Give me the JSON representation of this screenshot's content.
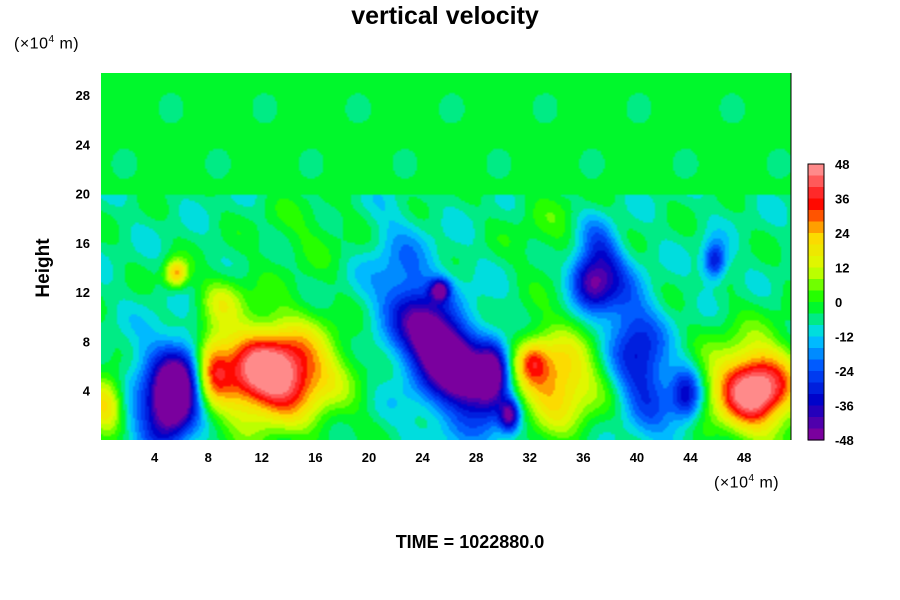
{
  "chart_data": {
    "type": "heatmap",
    "title": "vertical velocity",
    "ylabel": "Height",
    "x_unit": {
      "prefix": "(×10",
      "exp": "4",
      "suffix": " m)"
    },
    "y_unit": {
      "prefix": "(×10",
      "exp": "4",
      "suffix": " m)"
    },
    "x_ticks": [
      4,
      8,
      12,
      16,
      20,
      24,
      28,
      32,
      36,
      40,
      44,
      48
    ],
    "y_ticks": [
      4,
      8,
      12,
      16,
      20,
      24,
      28
    ],
    "xlim": [
      0,
      51.5
    ],
    "ylim": [
      0,
      29.8
    ],
    "colorbar": {
      "ticks": [
        48,
        36,
        24,
        12,
        0,
        -12,
        -24,
        -36,
        -48
      ],
      "range": [
        -48,
        48
      ]
    },
    "features": [
      {
        "x": 5.5,
        "y": 3.5,
        "sx": 1.2,
        "sy": 2.3,
        "v": -50,
        "rot": 0.2
      },
      {
        "x": 5.0,
        "y": 4.5,
        "sx": 2.2,
        "sy": 3.4,
        "v": -22,
        "rot": 0.2
      },
      {
        "x": 12.8,
        "y": 5.4,
        "sx": 2.7,
        "sy": 2.3,
        "v": 44,
        "rot": 0
      },
      {
        "x": 12.5,
        "y": 5.6,
        "sx": 4.4,
        "sy": 3.7,
        "v": 18,
        "rot": 0
      },
      {
        "x": 8.3,
        "y": 6.0,
        "sx": 0.9,
        "sy": 2.0,
        "v": 26,
        "rot": 0
      },
      {
        "x": 5.6,
        "y": 13.5,
        "sx": 0.6,
        "sy": 0.8,
        "v": 32,
        "rot": 0
      },
      {
        "x": 0.4,
        "y": 3.0,
        "sx": 1.0,
        "sy": 1.6,
        "v": 30,
        "rot": 0
      },
      {
        "x": 25.8,
        "y": 6.8,
        "sx": 1.2,
        "sy": 3.4,
        "v": -52,
        "rot": -0.6
      },
      {
        "x": 25.5,
        "y": 6.5,
        "sx": 2.8,
        "sy": 5.0,
        "v": -20,
        "rot": -0.5
      },
      {
        "x": 29.3,
        "y": 5.5,
        "sx": 0.8,
        "sy": 1.6,
        "v": -40,
        "rot": 0
      },
      {
        "x": 30.5,
        "y": 2.0,
        "sx": 0.5,
        "sy": 0.9,
        "v": -34,
        "rot": 0
      },
      {
        "x": 25.3,
        "y": 12.2,
        "sx": 0.5,
        "sy": 0.6,
        "v": -34,
        "rot": 0
      },
      {
        "x": 22.5,
        "y": 15.0,
        "sx": 1.5,
        "sy": 3.0,
        "v": -8,
        "rot": -0.4
      },
      {
        "x": 33.8,
        "y": 4.8,
        "sx": 2.3,
        "sy": 2.8,
        "v": 34,
        "rot": 0
      },
      {
        "x": 32.2,
        "y": 6.5,
        "sx": 0.8,
        "sy": 1.2,
        "v": 18,
        "rot": 0
      },
      {
        "x": 36.5,
        "y": 12.8,
        "sx": 1.0,
        "sy": 1.6,
        "v": -36,
        "rot": -0.3
      },
      {
        "x": 37.5,
        "y": 15.0,
        "sx": 1.0,
        "sy": 2.2,
        "v": -22,
        "rot": -0.3
      },
      {
        "x": 40.2,
        "y": 6.5,
        "sx": 1.5,
        "sy": 4.0,
        "v": -28,
        "rot": -0.2
      },
      {
        "x": 43.7,
        "y": 3.6,
        "sx": 0.8,
        "sy": 1.6,
        "v": -28,
        "rot": 0
      },
      {
        "x": 45.8,
        "y": 14.5,
        "sx": 0.6,
        "sy": 1.1,
        "v": -28,
        "rot": 0
      },
      {
        "x": 48.8,
        "y": 4.0,
        "sx": 1.9,
        "sy": 2.1,
        "v": 44,
        "rot": 0
      },
      {
        "x": 48.8,
        "y": 4.5,
        "sx": 3.0,
        "sy": 3.3,
        "v": 16,
        "rot": 0
      },
      {
        "x": 34.0,
        "y": 17.0,
        "sx": 2.5,
        "sy": 3.0,
        "v": 6,
        "rot": 0
      },
      {
        "x": 16.0,
        "y": 17.0,
        "sx": 3.0,
        "sy": 2.0,
        "v": 6,
        "rot": 0
      },
      {
        "x": 9.0,
        "y": 11.5,
        "sx": 1.2,
        "sy": 1.3,
        "v": 14,
        "rot": 0
      }
    ],
    "background_value": -6,
    "upper_layer": {
      "y_from": 20,
      "value": -3
    }
  },
  "footer": {
    "time_label": "TIME = 1022880.0"
  },
  "colors": {
    "scale": [
      "#7a009e",
      "#0000c8",
      "#0050ff",
      "#00d8ff",
      "#00ff00",
      "#d8ff00",
      "#ffd800",
      "#ff0000",
      "#ff8a8a"
    ]
  }
}
